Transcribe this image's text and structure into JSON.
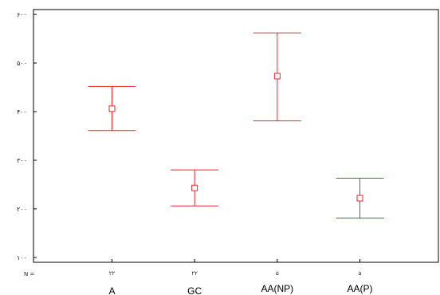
{
  "chart_data": {
    "type": "errorbar",
    "n_label": "N =",
    "categories": [
      "A",
      "GC",
      "AA(NP)",
      "AA(P)"
    ],
    "n_labels": [
      "۲۲",
      "۲۲",
      "۵",
      "۵"
    ],
    "series": [
      {
        "mean": [
          406,
          243,
          473,
          222
        ],
        "lower": [
          361,
          206,
          381,
          181
        ],
        "upper": [
          452,
          280,
          562,
          263
        ]
      }
    ],
    "ylim": [
      90,
      610
    ],
    "yticks": [
      {
        "value": 100,
        "label": "۱۰۰"
      },
      {
        "value": 200,
        "label": "۲۰۰"
      },
      {
        "value": 300,
        "label": "۳۰۰"
      },
      {
        "value": 400,
        "label": "۴۰۰"
      },
      {
        "value": 500,
        "label": "۵۰۰"
      },
      {
        "value": 600,
        "label": "۶۰۰"
      }
    ],
    "grid": false,
    "colors": {
      "marks": "#e8262b",
      "axis": "#000000"
    }
  }
}
